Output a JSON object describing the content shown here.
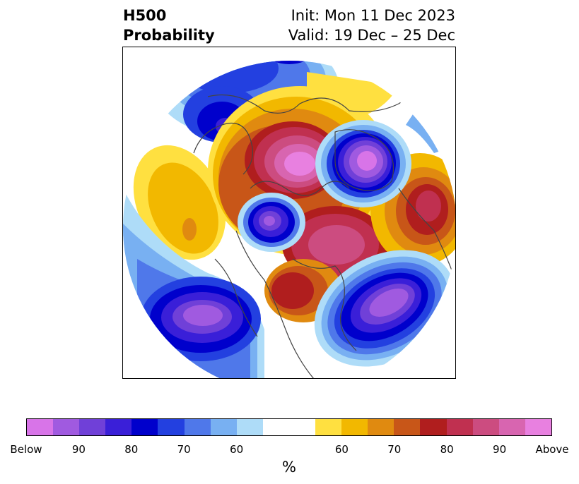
{
  "title": {
    "left_line1": "H500",
    "left_line2": "Probability",
    "right_line1": "Init: Mon 11 Dec 2023",
    "right_line2": "Valid: 19 Dec – 25 Dec"
  },
  "colorbar": {
    "unit": "%",
    "colors": [
      "#d874e8",
      "#a05ae0",
      "#7040d8",
      "#3a1fd8",
      "#0000cc",
      "#2340e0",
      "#4f78ea",
      "#78b0f2",
      "#aedcf8",
      "#ffffff",
      "#ffffff",
      "#ffe040",
      "#f2b800",
      "#e08a10",
      "#c85618",
      "#b01e1e",
      "#c03050",
      "#cc4c80",
      "#d865b0",
      "#e880e0"
    ],
    "labels": [
      "Below",
      "90",
      "80",
      "70",
      "60",
      "60",
      "70",
      "80",
      "90",
      "Above"
    ]
  },
  "colors": {
    "coastline": "#444444",
    "border": "#000000"
  }
}
